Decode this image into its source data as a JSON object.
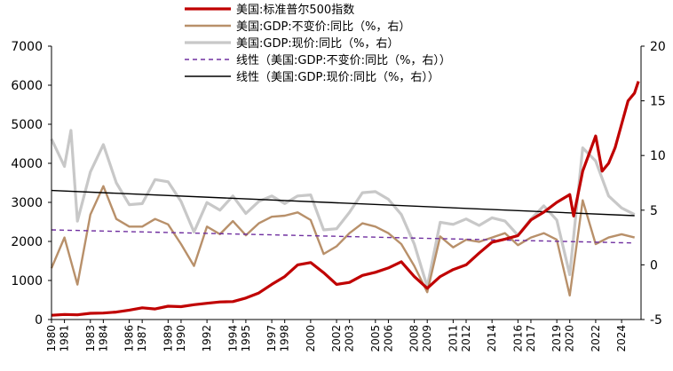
{
  "chart_data": {
    "type": "line",
    "title": "",
    "xlabel": "",
    "ylabel_left": "",
    "ylabel_right": "",
    "ylim_left": [
      0,
      7000
    ],
    "ylim_right": [
      -5,
      20
    ],
    "yticks_left": [
      "0",
      "1000",
      "2000",
      "3000",
      "4000",
      "5000",
      "6000",
      "7000"
    ],
    "yticks_right": [
      "-5",
      "0",
      "5",
      "10",
      "15",
      "20"
    ],
    "xlim": [
      1980,
      2025.5
    ],
    "xticks": [
      "1980",
      "1981",
      "1983",
      "1984",
      "1986",
      "1987",
      "1989",
      "1990",
      "1992",
      "1994",
      "1995",
      "1997",
      "1998",
      "2000",
      "2002",
      "2003",
      "2005",
      "2006",
      "2008",
      "2009",
      "2011",
      "2012",
      "2014",
      "2016",
      "2017",
      "2019",
      "2020",
      "2022",
      "2024"
    ],
    "grid": false,
    "legend_position": "top-center",
    "series": [
      {
        "name": "美国:标准普尔500指数",
        "axis": "left",
        "color": "#c00000",
        "style": "solid-thick",
        "points": [
          [
            1980,
            110
          ],
          [
            1981,
            130
          ],
          [
            1982,
            120
          ],
          [
            1983,
            160
          ],
          [
            1984,
            165
          ],
          [
            1985,
            190
          ],
          [
            1986,
            240
          ],
          [
            1987,
            300
          ],
          [
            1988,
            270
          ],
          [
            1989,
            340
          ],
          [
            1990,
            330
          ],
          [
            1991,
            380
          ],
          [
            1992,
            415
          ],
          [
            1993,
            450
          ],
          [
            1994,
            460
          ],
          [
            1995,
            550
          ],
          [
            1996,
            680
          ],
          [
            1997,
            900
          ],
          [
            1998,
            1100
          ],
          [
            1999,
            1400
          ],
          [
            2000,
            1460
          ],
          [
            2001,
            1200
          ],
          [
            2002,
            900
          ],
          [
            2003,
            950
          ],
          [
            2004,
            1130
          ],
          [
            2005,
            1210
          ],
          [
            2006,
            1320
          ],
          [
            2007,
            1480
          ],
          [
            2008,
            1100
          ],
          [
            2009,
            800
          ],
          [
            2010,
            1100
          ],
          [
            2011,
            1280
          ],
          [
            2012,
            1400
          ],
          [
            2013,
            1700
          ],
          [
            2014,
            1980
          ],
          [
            2015,
            2060
          ],
          [
            2016,
            2150
          ],
          [
            2017,
            2550
          ],
          [
            2018,
            2750
          ],
          [
            2019,
            3000
          ],
          [
            2020,
            3200
          ],
          [
            2020.3,
            2650
          ],
          [
            2021,
            3800
          ],
          [
            2022,
            4700
          ],
          [
            2022.5,
            3800
          ],
          [
            2023,
            4000
          ],
          [
            2023.5,
            4400
          ],
          [
            2024,
            5000
          ],
          [
            2024.5,
            5600
          ],
          [
            2025,
            5800
          ],
          [
            2025.3,
            6100
          ]
        ]
      },
      {
        "name": "美国:GDP:不变价:同比（%，右）",
        "axis": "right",
        "color": "#b8906a",
        "style": "solid",
        "points": [
          [
            1980,
            -0.3
          ],
          [
            1981,
            2.5
          ],
          [
            1982,
            -1.8
          ],
          [
            1983,
            4.6
          ],
          [
            1984,
            7.2
          ],
          [
            1985,
            4.2
          ],
          [
            1986,
            3.5
          ],
          [
            1987,
            3.5
          ],
          [
            1988,
            4.2
          ],
          [
            1989,
            3.7
          ],
          [
            1990,
            1.9
          ],
          [
            1991,
            -0.1
          ],
          [
            1992,
            3.5
          ],
          [
            1993,
            2.8
          ],
          [
            1994,
            4.0
          ],
          [
            1995,
            2.7
          ],
          [
            1996,
            3.8
          ],
          [
            1997,
            4.4
          ],
          [
            1998,
            4.5
          ],
          [
            1999,
            4.8
          ],
          [
            2000,
            4.1
          ],
          [
            2001,
            1.0
          ],
          [
            2002,
            1.7
          ],
          [
            2003,
            2.9
          ],
          [
            2004,
            3.8
          ],
          [
            2005,
            3.5
          ],
          [
            2006,
            2.9
          ],
          [
            2007,
            1.9
          ],
          [
            2008,
            -0.1
          ],
          [
            2009,
            -2.5
          ],
          [
            2010,
            2.6
          ],
          [
            2011,
            1.6
          ],
          [
            2012,
            2.3
          ],
          [
            2013,
            2.1
          ],
          [
            2014,
            2.5
          ],
          [
            2015,
            2.9
          ],
          [
            2016,
            1.8
          ],
          [
            2017,
            2.5
          ],
          [
            2018,
            2.9
          ],
          [
            2019,
            2.3
          ],
          [
            2020,
            -2.8
          ],
          [
            2021,
            5.9
          ],
          [
            2022,
            1.9
          ],
          [
            2023,
            2.5
          ],
          [
            2024,
            2.8
          ],
          [
            2025,
            2.5
          ]
        ]
      },
      {
        "name": "美国:GDP:现价:同比（%，右）",
        "axis": "right",
        "color": "#c8c8c8",
        "style": "solid-thick",
        "points": [
          [
            1980,
            11.5
          ],
          [
            1981,
            9.0
          ],
          [
            1981.5,
            12.3
          ],
          [
            1982,
            4.0
          ],
          [
            1983,
            8.5
          ],
          [
            1984,
            11.0
          ],
          [
            1985,
            7.5
          ],
          [
            1986,
            5.5
          ],
          [
            1987,
            5.6
          ],
          [
            1988,
            7.8
          ],
          [
            1989,
            7.6
          ],
          [
            1990,
            5.8
          ],
          [
            1991,
            3.0
          ],
          [
            1992,
            5.7
          ],
          [
            1993,
            5.0
          ],
          [
            1994,
            6.3
          ],
          [
            1995,
            4.7
          ],
          [
            1996,
            5.8
          ],
          [
            1997,
            6.3
          ],
          [
            1998,
            5.6
          ],
          [
            1999,
            6.3
          ],
          [
            2000,
            6.4
          ],
          [
            2001,
            3.2
          ],
          [
            2002,
            3.3
          ],
          [
            2003,
            4.8
          ],
          [
            2004,
            6.6
          ],
          [
            2005,
            6.7
          ],
          [
            2006,
            6.0
          ],
          [
            2007,
            4.6
          ],
          [
            2008,
            1.9
          ],
          [
            2009,
            -2.0
          ],
          [
            2010,
            3.9
          ],
          [
            2011,
            3.7
          ],
          [
            2012,
            4.2
          ],
          [
            2013,
            3.6
          ],
          [
            2014,
            4.3
          ],
          [
            2015,
            4.0
          ],
          [
            2016,
            2.7
          ],
          [
            2017,
            4.2
          ],
          [
            2018,
            5.4
          ],
          [
            2019,
            4.1
          ],
          [
            2020,
            -0.9
          ],
          [
            2021,
            10.7
          ],
          [
            2022,
            9.5
          ],
          [
            2023,
            6.3
          ],
          [
            2024,
            5.2
          ],
          [
            2025,
            4.6
          ]
        ]
      },
      {
        "name": "线性（美国:GDP:不变价:同比（%，右））",
        "axis": "right",
        "color": "#7030a0",
        "style": "dashed",
        "points": [
          [
            1980,
            3.2
          ],
          [
            2025,
            2.0
          ]
        ]
      },
      {
        "name": "线性（美国:GDP:现价:同比（%，右））",
        "axis": "right",
        "color": "#000000",
        "style": "solid-thin",
        "points": [
          [
            1980,
            6.8
          ],
          [
            2025,
            4.5
          ]
        ]
      }
    ]
  }
}
